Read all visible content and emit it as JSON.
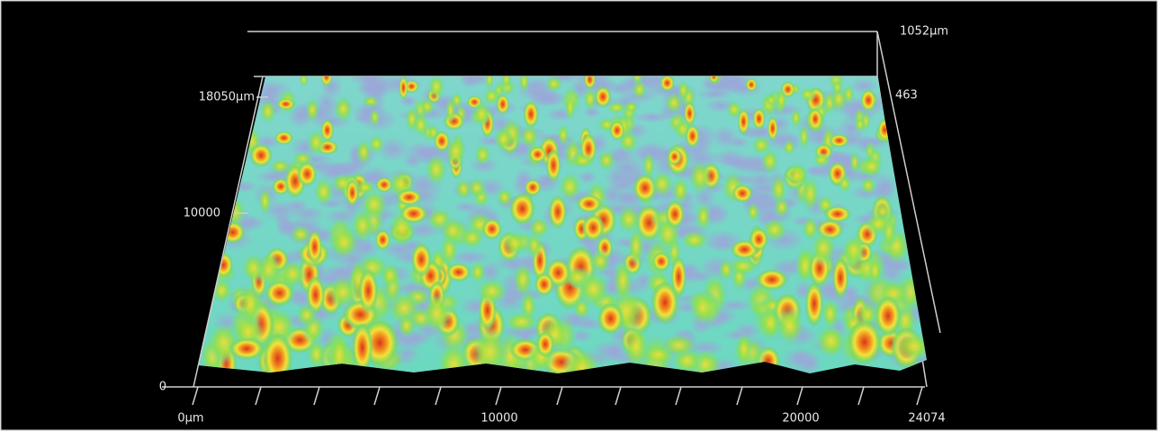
{
  "axes": {
    "z_top": "1052µm",
    "z_mid": "463",
    "y_max": "18050µm",
    "y_mid": "10000",
    "y_zero": "0",
    "x_zero": "0µm",
    "x_mid": "10000",
    "x_20000": "20000",
    "x_max": "24074"
  }
}
